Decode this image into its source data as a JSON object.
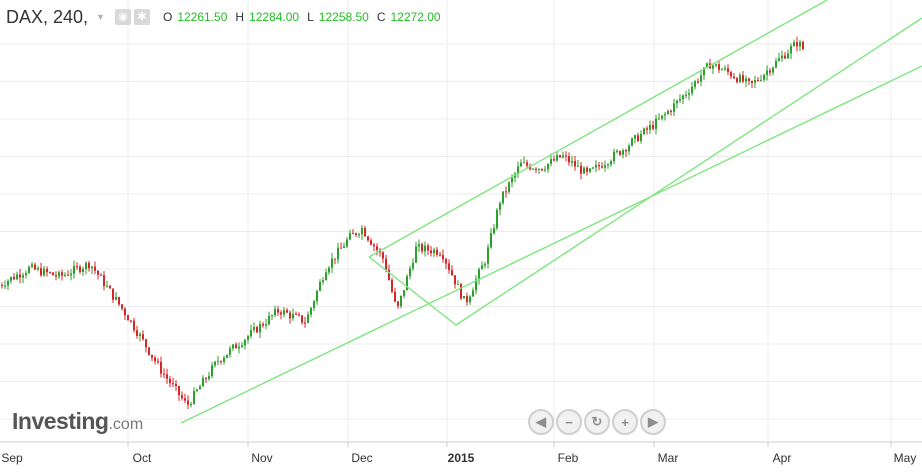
{
  "header": {
    "symbol": "DAX, 240,",
    "ohlc": [
      {
        "label": "O",
        "value": "12261.50"
      },
      {
        "label": "H",
        "value": "12284.00"
      },
      {
        "label": "L",
        "value": "12258.50"
      },
      {
        "label": "C",
        "value": "12272.00"
      }
    ]
  },
  "logo": {
    "brand": "Investing",
    "suffix": ".com"
  },
  "nav": {
    "back": "◀",
    "zoom_out": "−",
    "reset": "↻",
    "zoom_in": "+",
    "forward": "▶"
  },
  "chart_data": {
    "type": "candlestick",
    "instrument": "DAX",
    "timeframe": "240",
    "x_tick_labels": [
      "Sep",
      "Oct",
      "Nov",
      "Dec",
      "2015",
      "Feb",
      "Mar",
      "Apr",
      "May"
    ],
    "series": [
      {
        "values": [
          {
            "x": "Sep 1",
            "close": 11800
          },
          {
            "x": "Sep 8",
            "close": 11900
          },
          {
            "x": "Sep 15",
            "close": 11850
          },
          {
            "x": "Sep 22",
            "close": 11930
          },
          {
            "x": "Oct 1",
            "close": 11600
          },
          {
            "x": "Oct 9",
            "close": 11300
          },
          {
            "x": "Oct 16",
            "close": 11080
          },
          {
            "x": "Oct 24",
            "close": 11350
          },
          {
            "x": "Nov 1",
            "close": 11500
          },
          {
            "x": "Nov 10",
            "close": 11650
          },
          {
            "x": "Nov 18",
            "close": 11580
          },
          {
            "x": "Nov 24",
            "close": 11900
          },
          {
            "x": "Dec 1",
            "close": 12080
          },
          {
            "x": "Dec 5",
            "close": 12140
          },
          {
            "x": "Dec 12",
            "close": 11950
          },
          {
            "x": "Dec 16",
            "close": 11640
          },
          {
            "x": "Dec 22",
            "close": 12020
          },
          {
            "x": "Dec 30",
            "close": 12000
          },
          {
            "x": "Jan 6",
            "close": 11690
          },
          {
            "x": "Jan 12",
            "close": 11960
          },
          {
            "x": "Jan 16",
            "close": 12300
          },
          {
            "x": "Jan 22",
            "close": 12520
          },
          {
            "x": "Jan 28",
            "close": 12500
          },
          {
            "x": "Feb 3",
            "close": 12570
          },
          {
            "x": "Feb 10",
            "close": 12460
          },
          {
            "x": "Feb 20",
            "close": 12610
          },
          {
            "x": "Mar 3",
            "close": 12800
          },
          {
            "x": "Mar 10",
            "close": 12960
          },
          {
            "x": "Mar 16",
            "close": 13120
          },
          {
            "x": "Mar 20",
            "close": 13080
          },
          {
            "x": "Mar 27",
            "close": 12990
          },
          {
            "x": "Apr 1",
            "close": 13090
          },
          {
            "x": "Apr 8",
            "close": 13250
          },
          {
            "x": "Apr 10",
            "close": 13190
          }
        ]
      }
    ]
  }
}
